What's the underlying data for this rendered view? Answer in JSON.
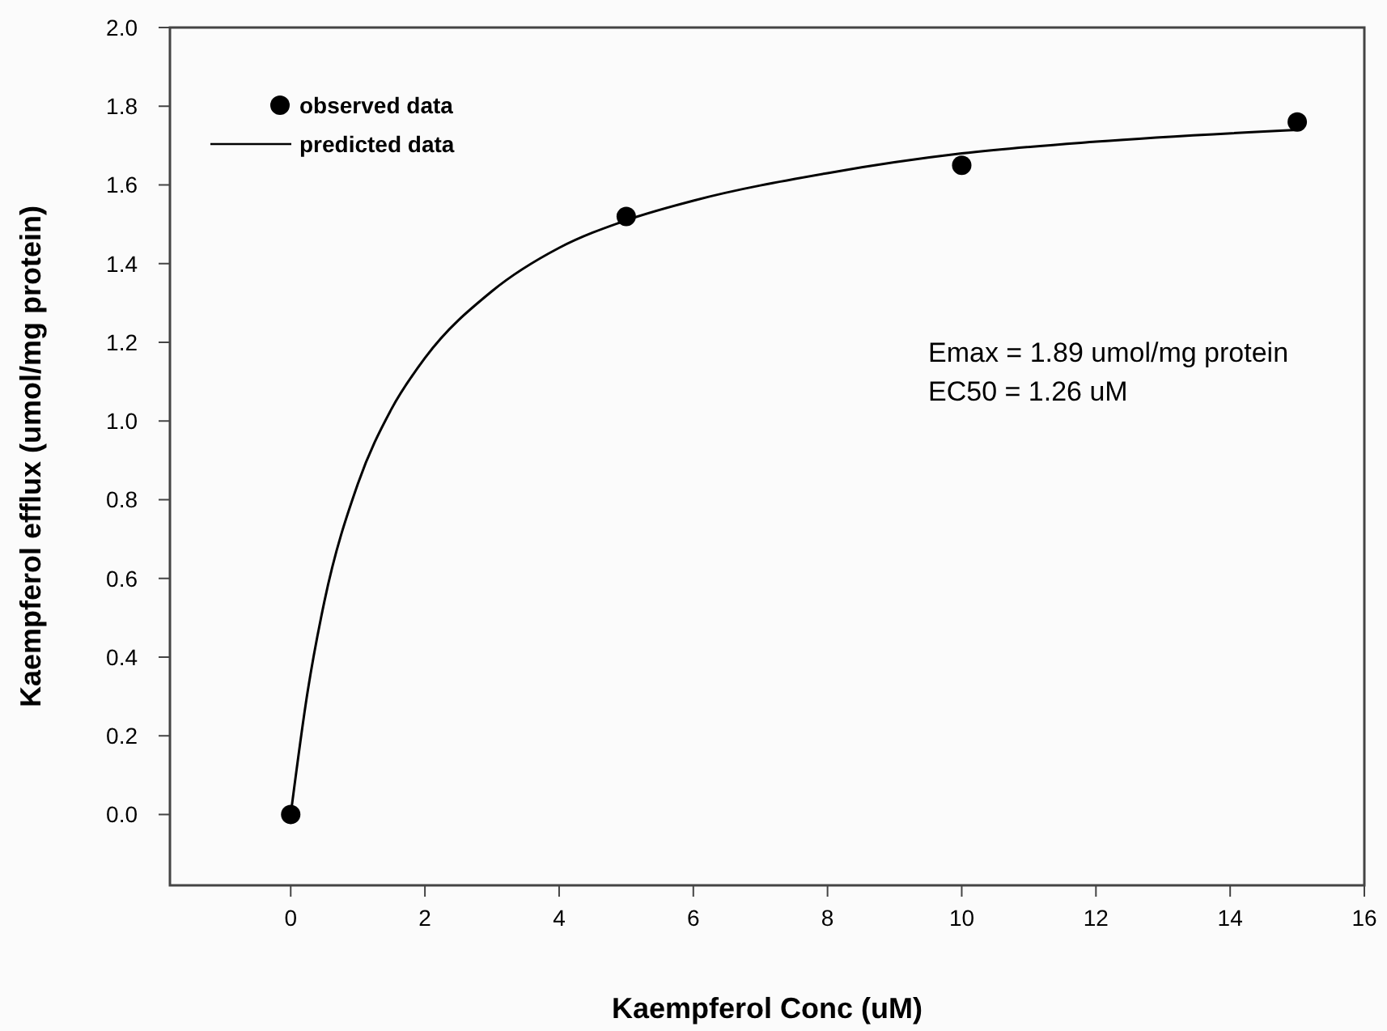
{
  "chart_data": {
    "type": "scatter",
    "xlabel": "Kaempferol Conc (uM)",
    "ylabel": "Kaempferol efflux (umol/mg protein)",
    "xlim": [
      -1.8,
      16
    ],
    "xticks": [
      0,
      2,
      4,
      6,
      8,
      10,
      12,
      14,
      16
    ],
    "ylim": [
      -0.18,
      2.0
    ],
    "yticks": [
      {
        "value": 0,
        "label": "0.0"
      },
      {
        "value": 0.2,
        "label": "0.2"
      },
      {
        "value": 0.4,
        "label": "0.4"
      },
      {
        "value": 0.6,
        "label": "0.6"
      },
      {
        "value": 0.8,
        "label": "0.8"
      },
      {
        "value": 1,
        "label": "1.0"
      },
      {
        "value": 1.2,
        "label": "1.2"
      },
      {
        "value": 1.4,
        "label": "1.4"
      },
      {
        "value": 1.6,
        "label": "1.6"
      },
      {
        "value": 1.8,
        "label": "1.8"
      },
      {
        "value": 2,
        "label": "2.0"
      }
    ],
    "grid": false,
    "legend": "top left",
    "series": [
      {
        "name": "observed data",
        "marker": "circle",
        "color": "#000000",
        "x": [
          0,
          5,
          10,
          15
        ],
        "values": [
          0,
          1.52,
          1.65,
          1.76
        ]
      },
      {
        "name": "predicted data",
        "type": "line",
        "marker": "none",
        "line_style": "solid",
        "color": "#000000",
        "x": [
          0,
          0.25,
          0.5,
          1,
          1.5,
          2,
          3,
          4,
          5,
          6,
          8,
          10,
          12,
          15
        ],
        "values": [
          0,
          0.31,
          0.54,
          0.84,
          1.03,
          1.16,
          1.33,
          1.44,
          1.51,
          1.56,
          1.63,
          1.68,
          1.71,
          1.74
        ]
      }
    ],
    "annotations": [
      "Emax = 1.89 umol/mg protein",
      "EC50 =  1.26 uM"
    ]
  }
}
